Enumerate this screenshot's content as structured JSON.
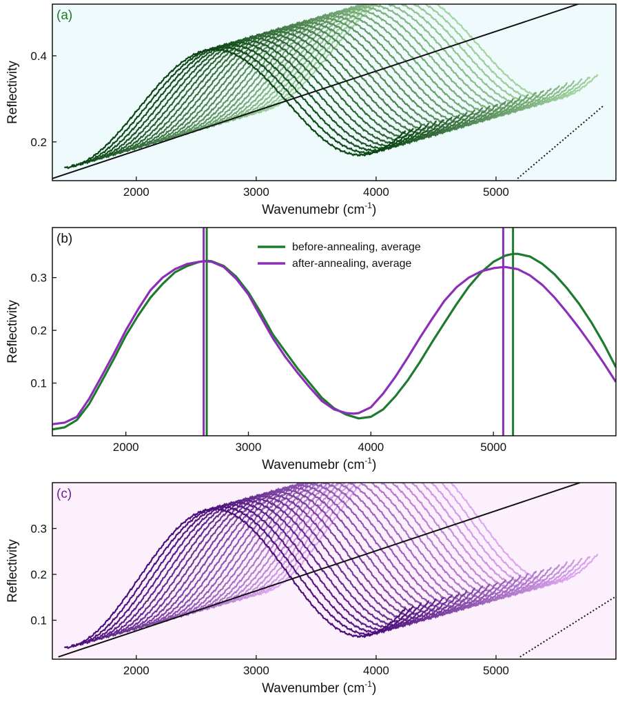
{
  "chart_data": [
    {
      "type": "line",
      "panel_label": "(a)",
      "panel_label_color": "#1e7a1e",
      "background": "#effafc",
      "xlabel_base": "Wavenumebr (cm",
      "xlabel_sup": "-1",
      "xlabel_close": ")",
      "ylabel": "Reflectivity",
      "xlim": [
        1300,
        6000
      ],
      "ylim": [
        0.11,
        0.52
      ],
      "x_ticks": [
        2000,
        3000,
        4000,
        5000
      ],
      "x_tick_labels": [
        "2000",
        "3000",
        "4000",
        "5000"
      ],
      "y_ticks": [
        0.2,
        0.4
      ],
      "y_tick_labels": [
        "0.2",
        "0.4"
      ],
      "waterfall": {
        "curves": 26,
        "x_start": 1400,
        "x_end": 4250,
        "x_step": 64,
        "y_step": 0.0052,
        "model": {
          "center": 0.27,
          "amplitude": 0.13,
          "period": 2480,
          "peak_x": 2640,
          "tilt_per_1000": 0.012
        },
        "color_from": "#0b4514",
        "color_to": "#a3d3a0"
      },
      "guide_line_solid": {
        "x": [
          1300,
          5900
        ],
        "y": [
          0.115,
          0.54
        ]
      },
      "guide_line_dotted": {
        "x": [
          5180,
          5900
        ],
        "y": [
          0.115,
          0.285
        ]
      },
      "grid": false,
      "legend": null
    },
    {
      "type": "line",
      "panel_label": "(b)",
      "panel_label_color": "#111111",
      "background": "#ffffff",
      "xlabel_base": "Wavenumebr (cm",
      "xlabel_sup": "-1",
      "xlabel_close": ")",
      "ylabel": "Reflectivity",
      "xlim": [
        1400,
        6000
      ],
      "ylim": [
        0.0,
        0.395
      ],
      "x_ticks": [
        2000,
        3000,
        4000,
        5000
      ],
      "x_tick_labels": [
        "2000",
        "3000",
        "4000",
        "5000"
      ],
      "y_ticks": [
        0.1,
        0.2,
        0.3
      ],
      "y_tick_labels": [
        "0.1",
        "0.2",
        "0.3"
      ],
      "series": [
        {
          "name": "before-annealing, average",
          "color": "#1e7a2e",
          "x": [
            1400,
            1500,
            1600,
            1700,
            1800,
            1900,
            2000,
            2100,
            2200,
            2300,
            2400,
            2500,
            2600,
            2660,
            2700,
            2800,
            2900,
            3000,
            3100,
            3200,
            3300,
            3400,
            3500,
            3600,
            3700,
            3800,
            3900,
            4000,
            4100,
            4200,
            4300,
            4400,
            4500,
            4600,
            4700,
            4800,
            4900,
            5000,
            5100,
            5160,
            5200,
            5300,
            5400,
            5500,
            5600,
            5700,
            5800,
            5900,
            6000
          ],
          "values": [
            0.012,
            0.016,
            0.03,
            0.06,
            0.102,
            0.145,
            0.19,
            0.228,
            0.262,
            0.288,
            0.31,
            0.322,
            0.33,
            0.332,
            0.331,
            0.322,
            0.302,
            0.272,
            0.234,
            0.192,
            0.16,
            0.128,
            0.1,
            0.072,
            0.052,
            0.04,
            0.033,
            0.036,
            0.05,
            0.075,
            0.105,
            0.14,
            0.178,
            0.214,
            0.25,
            0.283,
            0.31,
            0.33,
            0.342,
            0.345,
            0.345,
            0.34,
            0.326,
            0.306,
            0.28,
            0.25,
            0.215,
            0.175,
            0.13
          ]
        },
        {
          "name": "after-annealing, average",
          "color": "#8b2fb8",
          "x": [
            1400,
            1500,
            1600,
            1700,
            1800,
            1900,
            2000,
            2100,
            2200,
            2300,
            2400,
            2500,
            2600,
            2640,
            2700,
            2800,
            2900,
            3000,
            3100,
            3200,
            3300,
            3400,
            3500,
            3600,
            3700,
            3800,
            3860,
            3900,
            4000,
            4100,
            4200,
            4300,
            4400,
            4500,
            4600,
            4700,
            4800,
            4900,
            5000,
            5080,
            5100,
            5200,
            5300,
            5400,
            5500,
            5600,
            5700,
            5800,
            5900,
            6000
          ],
          "values": [
            0.022,
            0.025,
            0.036,
            0.07,
            0.112,
            0.155,
            0.2,
            0.24,
            0.276,
            0.3,
            0.316,
            0.326,
            0.33,
            0.331,
            0.33,
            0.32,
            0.298,
            0.268,
            0.226,
            0.185,
            0.15,
            0.12,
            0.092,
            0.066,
            0.05,
            0.043,
            0.042,
            0.043,
            0.054,
            0.08,
            0.112,
            0.148,
            0.186,
            0.222,
            0.256,
            0.282,
            0.3,
            0.312,
            0.318,
            0.32,
            0.32,
            0.316,
            0.304,
            0.286,
            0.262,
            0.234,
            0.204,
            0.172,
            0.138,
            0.102
          ]
        }
      ],
      "vertical_markers": [
        {
          "x": 2635,
          "color": "#8b2fb8"
        },
        {
          "x": 2660,
          "color": "#1e7a2e"
        },
        {
          "x": 5080,
          "color": "#8b2fb8"
        },
        {
          "x": 5160,
          "color": "#1e7a2e"
        }
      ],
      "grid": false,
      "legend": "top-center"
    },
    {
      "type": "line",
      "panel_label": "(c)",
      "panel_label_color": "#6a1f9a",
      "background": "#fdf0fd",
      "xlabel_base": "Wavenumber (cm",
      "xlabel_sup": "-1",
      "xlabel_close": ")",
      "ylabel": "Reflectivity",
      "xlim": [
        1300,
        6000
      ],
      "ylim": [
        0.015,
        0.4
      ],
      "x_ticks": [
        2000,
        3000,
        4000,
        5000
      ],
      "x_tick_labels": [
        "2000",
        "3000",
        "4000",
        "5000"
      ],
      "y_ticks": [
        0.1,
        0.2,
        0.3
      ],
      "y_tick_labels": [
        "0.1",
        "0.2",
        "0.3"
      ],
      "waterfall": {
        "curves": 26,
        "x_start": 1400,
        "x_end": 4250,
        "x_step": 64,
        "y_step": 0.0047,
        "model": {
          "center": 0.185,
          "amplitude": 0.145,
          "period": 2480,
          "peak_x": 2640,
          "tilt_per_1000": 0.01
        },
        "color_from": "#4a0f78",
        "color_to": "#dca8ef"
      },
      "guide_line_solid": {
        "x": [
          1350,
          5700
        ],
        "y": [
          0.02,
          0.4
        ]
      },
      "guide_line_dotted": {
        "x": [
          5200,
          6000
        ],
        "y": [
          0.02,
          0.152
        ]
      },
      "grid": false,
      "legend": null
    }
  ]
}
